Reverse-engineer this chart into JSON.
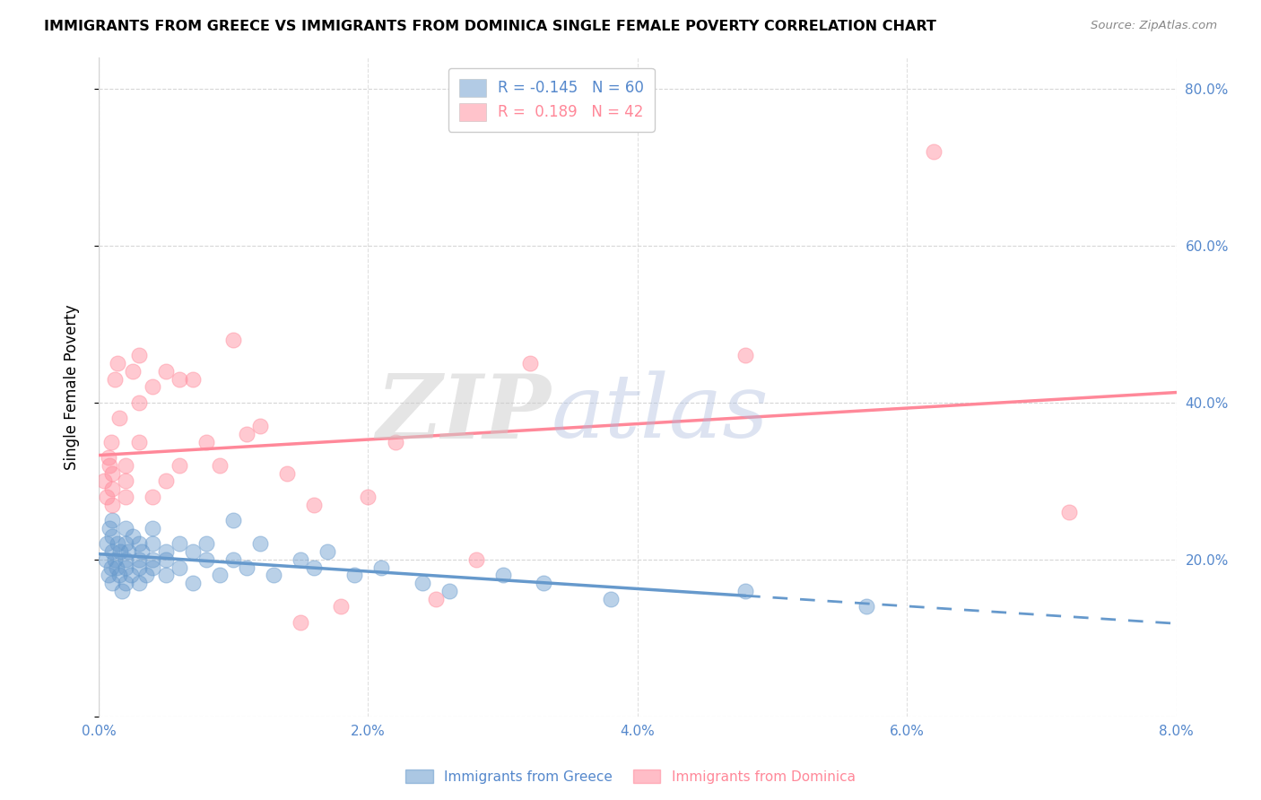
{
  "title": "IMMIGRANTS FROM GREECE VS IMMIGRANTS FROM DOMINICA SINGLE FEMALE POVERTY CORRELATION CHART",
  "source": "Source: ZipAtlas.com",
  "ylabel": "Single Female Poverty",
  "xlim": [
    0.0,
    0.08
  ],
  "ylim": [
    0.0,
    0.84
  ],
  "xticks": [
    0.0,
    0.01,
    0.02,
    0.03,
    0.04,
    0.05,
    0.06,
    0.07,
    0.08
  ],
  "xtick_labels": [
    "0.0%",
    "",
    "2.0%",
    "",
    "4.0%",
    "",
    "6.0%",
    "",
    "8.0%"
  ],
  "yticks_right": [
    0.0,
    0.2,
    0.4,
    0.6,
    0.8
  ],
  "greece_color": "#6699CC",
  "dominica_color": "#FF8899",
  "greece_label": "Immigrants from Greece",
  "dominica_label": "Immigrants from Dominica",
  "R_greece": -0.145,
  "N_greece": 60,
  "R_dominica": 0.189,
  "N_dominica": 42,
  "watermark_zip": "ZIP",
  "watermark_atlas": "atlas",
  "background_color": "#ffffff",
  "grid_color": "#cccccc",
  "axis_color": "#5588CC",
  "greece_x": [
    0.0005,
    0.0006,
    0.0007,
    0.0008,
    0.0009,
    0.001,
    0.001,
    0.001,
    0.001,
    0.0012,
    0.0013,
    0.0014,
    0.0015,
    0.0016,
    0.0017,
    0.002,
    0.002,
    0.002,
    0.002,
    0.002,
    0.0022,
    0.0024,
    0.0025,
    0.003,
    0.003,
    0.003,
    0.003,
    0.0032,
    0.0035,
    0.004,
    0.004,
    0.004,
    0.004,
    0.005,
    0.005,
    0.005,
    0.006,
    0.006,
    0.007,
    0.007,
    0.008,
    0.008,
    0.009,
    0.01,
    0.01,
    0.011,
    0.012,
    0.013,
    0.015,
    0.016,
    0.017,
    0.019,
    0.021,
    0.024,
    0.026,
    0.03,
    0.033,
    0.038,
    0.048,
    0.057
  ],
  "greece_y": [
    0.2,
    0.22,
    0.18,
    0.24,
    0.19,
    0.21,
    0.23,
    0.17,
    0.25,
    0.2,
    0.19,
    0.22,
    0.18,
    0.21,
    0.16,
    0.22,
    0.2,
    0.19,
    0.17,
    0.24,
    0.21,
    0.18,
    0.23,
    0.2,
    0.22,
    0.19,
    0.17,
    0.21,
    0.18,
    0.24,
    0.2,
    0.22,
    0.19,
    0.21,
    0.18,
    0.2,
    0.22,
    0.19,
    0.21,
    0.17,
    0.2,
    0.22,
    0.18,
    0.25,
    0.2,
    0.19,
    0.22,
    0.18,
    0.2,
    0.19,
    0.21,
    0.18,
    0.19,
    0.17,
    0.16,
    0.18,
    0.17,
    0.15,
    0.16,
    0.14
  ],
  "dominica_x": [
    0.0004,
    0.0006,
    0.0007,
    0.0008,
    0.0009,
    0.001,
    0.001,
    0.001,
    0.0012,
    0.0014,
    0.0015,
    0.002,
    0.002,
    0.002,
    0.0025,
    0.003,
    0.003,
    0.003,
    0.004,
    0.004,
    0.005,
    0.005,
    0.006,
    0.006,
    0.007,
    0.008,
    0.009,
    0.01,
    0.011,
    0.012,
    0.014,
    0.015,
    0.016,
    0.018,
    0.02,
    0.022,
    0.025,
    0.028,
    0.032,
    0.048,
    0.062,
    0.072
  ],
  "dominica_y": [
    0.3,
    0.28,
    0.33,
    0.32,
    0.35,
    0.29,
    0.27,
    0.31,
    0.43,
    0.45,
    0.38,
    0.3,
    0.32,
    0.28,
    0.44,
    0.46,
    0.4,
    0.35,
    0.42,
    0.28,
    0.44,
    0.3,
    0.43,
    0.32,
    0.43,
    0.35,
    0.32,
    0.48,
    0.36,
    0.37,
    0.31,
    0.12,
    0.27,
    0.14,
    0.28,
    0.35,
    0.15,
    0.2,
    0.45,
    0.46,
    0.72,
    0.26
  ],
  "greece_trend_solid_end": 0.048,
  "dominica_trend_end": 0.08
}
